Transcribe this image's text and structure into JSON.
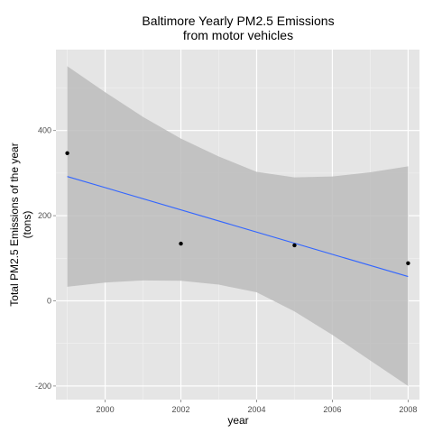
{
  "chart_data": {
    "type": "scatter",
    "title": [
      "Baltimore Yearly PM2.5 Emissions",
      "from motor vehicles"
    ],
    "xlabel": "year",
    "ylabel": [
      "Total PM2.5 Emissions of the year",
      "(tons)"
    ],
    "xlim": [
      1998.7,
      2008.3
    ],
    "ylim": [
      -232,
      590
    ],
    "x_ticks": [
      2000,
      2002,
      2004,
      2006,
      2008
    ],
    "x_tick_labels": [
      "2000",
      "2002",
      "2004",
      "2006",
      "2008"
    ],
    "y_ticks": [
      -200,
      0,
      200,
      400
    ],
    "y_tick_labels": [
      "-200",
      "0",
      "200",
      "400"
    ],
    "grid": true,
    "series": [
      {
        "points": [
          {
            "x": 1999,
            "y": 346.8
          },
          {
            "x": 2002,
            "y": 134.3
          },
          {
            "x": 2005,
            "y": 130.4
          },
          {
            "x": 2008,
            "y": 88.3
          }
        ]
      }
    ],
    "trend_line": {
      "x": [
        1999,
        2008
      ],
      "y": [
        292,
        57
      ]
    },
    "confidence_band": {
      "x": [
        1999,
        2000,
        2001,
        2002,
        2003,
        2004,
        2005,
        2006,
        2007,
        2008
      ],
      "upper": [
        551,
        490,
        432,
        381,
        339,
        303,
        290,
        292,
        302,
        316
      ],
      "lower": [
        33,
        43,
        48,
        47,
        38,
        20,
        -25,
        -80,
        -140,
        -200
      ]
    },
    "colors": {
      "panel": "#e5e5e5",
      "grid_major": "#ffffff",
      "grid_minor": "#f2f2f2",
      "band": "#bcbcbc",
      "line": "#3366ff",
      "point": "#000000"
    }
  }
}
